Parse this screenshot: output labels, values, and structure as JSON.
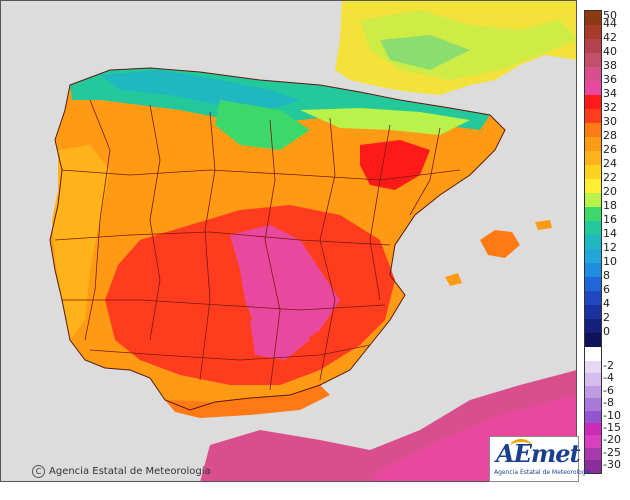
{
  "legend": {
    "warm_labels": [
      "50",
      "44",
      "42",
      "40",
      "38",
      "36",
      "34",
      "32",
      "30",
      "28",
      "26",
      "24",
      "22",
      "20",
      "18",
      "16",
      "14",
      "12",
      "10",
      "8",
      "6",
      "4",
      "2",
      "0"
    ],
    "warm_colors": [
      "#8c3a14",
      "#a83a2a",
      "#b4434f",
      "#c2506a",
      "#d94f8d",
      "#e8489d",
      "#ff1a1a",
      "#ff3c1e",
      "#ff7a14",
      "#ff9a14",
      "#ffb31a",
      "#ffd21e",
      "#ffee33",
      "#b9f24a",
      "#3dd86a",
      "#23c99a",
      "#1fb8c0",
      "#22a8d8",
      "#1f8de0",
      "#2166d8",
      "#2048c0",
      "#1c30a0",
      "#15207c",
      "#0e1258"
    ],
    "cold_labels": [
      "-2",
      "-4",
      "-6",
      "-8",
      "-10",
      "-15",
      "-20",
      "-25",
      "-30"
    ],
    "cold_colors": [
      "#e6d8f2",
      "#d4bdec",
      "#c09be3",
      "#a978db",
      "#9456d0",
      "#cc2bb8",
      "#d940c0",
      "#a83ab0",
      "#8a2e9a"
    ]
  },
  "credit": {
    "symbol": "C",
    "text": "Agencia Estatal de Meteorología"
  },
  "logo": {
    "brand": "AEmet",
    "subtitle": "Agencia Estatal de Meteorología"
  }
}
